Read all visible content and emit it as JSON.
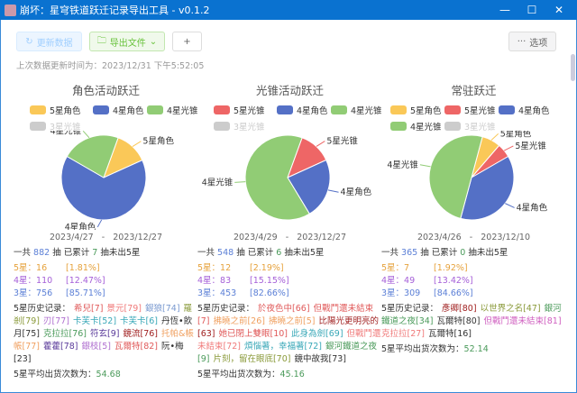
{
  "window": {
    "title": "崩坏：星穹铁道跃迁记录导出工具 - v0.1.2",
    "min": "—",
    "max": "☐",
    "close": "✕"
  },
  "toolbar": {
    "refresh": "更新数据",
    "export": "导出文件",
    "add": "+",
    "options": "选项",
    "refresh_icon": "refresh-icon",
    "export_icon": "folder-icon",
    "options_icon": "ellipsis-icon"
  },
  "last_update": "上次数据更新时间为：2023/12/31 下午5:52:05",
  "colors": {
    "yellow": "#fac858",
    "blue": "#5470c6",
    "green": "#91cc75",
    "red": "#ee6666",
    "grey": "#cccccc",
    "five": "#e6a23c",
    "four": "#a55fd8",
    "three": "#5b7fd6"
  },
  "pools": [
    {
      "title": "角色活动跃迁",
      "legend": [
        {
          "label": "5星角色",
          "color": "#fac858"
        },
        {
          "label": "4星角色",
          "color": "#5470c6"
        },
        {
          "label": "4星光锥",
          "color": "#91cc75"
        },
        {
          "label": "3星光锥",
          "color": "#cccccc",
          "disabled": true
        }
      ],
      "chart_data": {
        "type": "pie",
        "slices": [
          {
            "label": "5星角色",
            "value": 16,
            "color": "#fac858"
          },
          {
            "label": "4星角色",
            "value": 82,
            "color": "#5470c6"
          },
          {
            "label": "4星光锥",
            "value": 28,
            "color": "#91cc75"
          }
        ]
      },
      "date_from": "2023/4/27",
      "date_sep": "-",
      "date_to": "2023/12/27",
      "total_pre": "一共",
      "total": "882",
      "total_mid": "抽 已累计",
      "pity": "7",
      "total_post": "抽未出5星",
      "five": "5星：16",
      "five_pct": "[1.81%]",
      "four": "4星：110",
      "four_pct": "[12.47%]",
      "three": "3星：756",
      "three_pct": "[85.71%]",
      "hist_label": "5星历史记录：",
      "history": [
        {
          "t": "希兒[7]",
          "c": "#e05a5a"
        },
        {
          "t": "景元[79]",
          "c": "#f07a7a"
        },
        {
          "t": "銀狼[74]",
          "c": "#7a9ad0"
        },
        {
          "t": "羅剎[79]",
          "c": "#8a9a3a"
        },
        {
          "t": "刃[77]",
          "c": "#b070d0"
        },
        {
          "t": "卡芙卡[52]",
          "c": "#3aa8b8"
        },
        {
          "t": "卡芙卡[6]",
          "c": "#3aa8b8"
        },
        {
          "t": "丹恆•飲月[75]",
          "c": "#333333"
        },
        {
          "t": "克拉拉[76]",
          "c": "#4a9a5a"
        },
        {
          "t": "符玄[9]",
          "c": "#5a3a9a"
        },
        {
          "t": "鏡流[76]",
          "c": "#a02020"
        },
        {
          "t": "托帕&帳帳[77]",
          "c": "#f0a060"
        },
        {
          "t": "藿藿[78]",
          "c": "#5a3a9a"
        },
        {
          "t": "銀枝[5]",
          "c": "#b070d0"
        },
        {
          "t": "瓦爾特[82]",
          "c": "#e05a5a"
        },
        {
          "t": "阮•梅[23]",
          "c": "#333333"
        }
      ],
      "avg_label": "5星平均出货次数为：",
      "avg": "54.68"
    },
    {
      "title": "光锥活动跃迁",
      "legend": [
        {
          "label": "5星光锥",
          "color": "#ee6666"
        },
        {
          "label": "4星角色",
          "color": "#5470c6"
        },
        {
          "label": "4星光锥",
          "color": "#91cc75"
        },
        {
          "label": "3星光锥",
          "color": "#cccccc",
          "disabled": true
        }
      ],
      "chart_data": {
        "type": "pie",
        "slices": [
          {
            "label": "5星光锥",
            "value": 12,
            "color": "#ee6666"
          },
          {
            "label": "4星角色",
            "value": 22,
            "color": "#5470c6"
          },
          {
            "label": "4星光锥",
            "value": 61,
            "color": "#91cc75"
          }
        ]
      },
      "date_from": "2023/4/29",
      "date_sep": "-",
      "date_to": "2023/12/27",
      "total_pre": "一共",
      "total": "548",
      "total_mid": "抽 已累计",
      "pity": "6",
      "total_post": "抽未出5星",
      "five": "5星：12",
      "five_pct": "[2.19%]",
      "four": "4星：83",
      "four_pct": "[15.15%]",
      "three": "3星：453",
      "three_pct": "[82.66%]",
      "hist_label": "5星历史记录：",
      "history": [
        {
          "t": "於夜色中[66]",
          "c": "#e05a5a"
        },
        {
          "t": "但戰鬥還未結束[7]",
          "c": "#e05a5a"
        },
        {
          "t": "拂曉之前[26]",
          "c": "#f0a060"
        },
        {
          "t": "拂曉之前[5]",
          "c": "#f0a060"
        },
        {
          "t": "比陽光更明亮的[63]",
          "c": "#a02020"
        },
        {
          "t": "她已閉上雙眼[10]",
          "c": "#e05a5a"
        },
        {
          "t": "此身為劍[69]",
          "c": "#3aa8b8"
        },
        {
          "t": "但戰鬥還未結束[72]",
          "c": "#f07a7a"
        },
        {
          "t": "煩惱著，幸福著[72]",
          "c": "#3aa8b8"
        },
        {
          "t": "銀河鐵道之夜[9]",
          "c": "#4a9a5a"
        },
        {
          "t": "片刻，留在眼底[70]",
          "c": "#8a9a3a"
        },
        {
          "t": "鏡中故我[73]",
          "c": "#333333"
        }
      ],
      "avg_label": "5星平均出货次数为：",
      "avg": "45.16"
    },
    {
      "title": "常驻跃迁",
      "legend": [
        {
          "label": "5星角色",
          "color": "#fac858"
        },
        {
          "label": "5星光锥",
          "color": "#ee6666"
        },
        {
          "label": "4星角色",
          "color": "#5470c6"
        },
        {
          "label": "4星光锥",
          "color": "#91cc75"
        },
        {
          "label": "3星光锥",
          "color": "#cccccc",
          "disabled": true
        }
      ],
      "chart_data": {
        "type": "pie",
        "slices": [
          {
            "label": "5星角色",
            "value": 4,
            "color": "#fac858"
          },
          {
            "label": "5星光锥",
            "value": 3,
            "color": "#ee6666"
          },
          {
            "label": "4星角色",
            "value": 21,
            "color": "#5470c6"
          },
          {
            "label": "4星光锥",
            "value": 28,
            "color": "#91cc75"
          }
        ]
      },
      "date_from": "2023/4/26",
      "date_sep": "-",
      "date_to": "2023/12/10",
      "total_pre": "一共",
      "total": "365",
      "total_mid": "抽 已累计",
      "pity": "0",
      "total_post": "抽未出5星",
      "five": "5星：7",
      "five_pct": "[1.92%]",
      "four": "4星：49",
      "four_pct": "[13.42%]",
      "three": "3星：309",
      "three_pct": "[84.66%]",
      "hist_label": "5星历史记录：",
      "history": [
        {
          "t": "彥卿[80]",
          "c": "#a02020"
        },
        {
          "t": "以世界之名[47]",
          "c": "#8a9a3a"
        },
        {
          "t": "銀河鐵道之夜[34]",
          "c": "#4a9a5a"
        },
        {
          "t": "瓦爾特[80]",
          "c": "#333333"
        },
        {
          "t": "但戰鬥還未結束[81]",
          "c": "#d060c0"
        },
        {
          "t": "克拉拉[27]",
          "c": "#f07a7a"
        },
        {
          "t": "瓦爾特[16]",
          "c": "#333333"
        }
      ],
      "avg_label": "5星平均出货次数为：",
      "avg": "52.14"
    }
  ]
}
